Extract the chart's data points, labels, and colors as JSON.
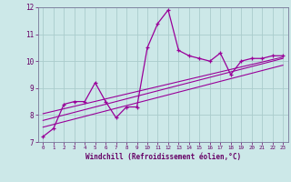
{
  "title": "",
  "xlabel": "Windchill (Refroidissement éolien,°C)",
  "ylabel": "",
  "bg_color": "#cce8e8",
  "grid_color": "#aacccc",
  "line_color": "#990099",
  "xlim": [
    -0.5,
    23.5
  ],
  "ylim": [
    7,
    12
  ],
  "xticks": [
    0,
    1,
    2,
    3,
    4,
    5,
    6,
    7,
    8,
    9,
    10,
    11,
    12,
    13,
    14,
    15,
    16,
    17,
    18,
    19,
    20,
    21,
    22,
    23
  ],
  "yticks": [
    7,
    8,
    9,
    10,
    11,
    12
  ],
  "series1_x": [
    0,
    1,
    2,
    3,
    4,
    5,
    6,
    7,
    8,
    9,
    10,
    11,
    12,
    13,
    14,
    15,
    16,
    17,
    18,
    19,
    20,
    21,
    22,
    23
  ],
  "series1_y": [
    7.2,
    7.5,
    8.4,
    8.5,
    8.5,
    9.2,
    8.5,
    7.9,
    8.3,
    8.3,
    10.5,
    11.4,
    11.9,
    10.4,
    10.2,
    10.1,
    10.0,
    10.3,
    9.5,
    10.0,
    10.1,
    10.1,
    10.2,
    10.2
  ],
  "series2_x": [
    0,
    23
  ],
  "series2_y": [
    7.8,
    10.1
  ],
  "series3_x": [
    0,
    23
  ],
  "series3_y": [
    8.05,
    10.15
  ],
  "series4_x": [
    0,
    23
  ],
  "series4_y": [
    7.55,
    9.85
  ]
}
